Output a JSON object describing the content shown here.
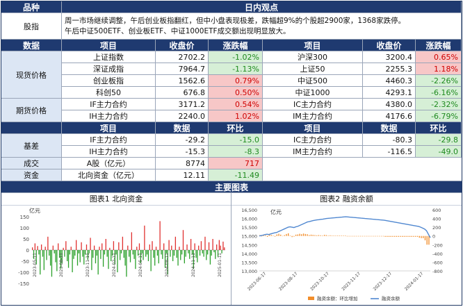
{
  "header": {
    "variety": "品种",
    "view": "日内观点"
  },
  "intraday": {
    "label": "股指",
    "lines": [
      "周一市场继续调整，午后创业板指翻红，但中小盘表现极差，跌幅超9%的个股超2900家，1368家跌停。",
      "午后中证500ETF、创业板ETF、中证1000ETF成交额出现明显放大。"
    ]
  },
  "section_headers": {
    "data": "数据",
    "item": "项目",
    "close": "收盘价",
    "change": "涨跌幅",
    "item2": "项目",
    "close2": "收盘价",
    "change2": "涨跌幅",
    "data2": "数据",
    "hb": "环比",
    "item3": "项目",
    "data3": "数据",
    "hb2": "环比",
    "charts": "主要图表"
  },
  "spot": {
    "label": "现货价格",
    "rows": [
      {
        "left": {
          "name": "上证指数",
          "close": "2702.2",
          "chg": "-1.02%",
          "dir": "down"
        },
        "right": {
          "name": "沪深300",
          "close": "3200.4",
          "chg": "0.65%",
          "dir": "up"
        }
      },
      {
        "left": {
          "name": "深证成指",
          "close": "7964.7",
          "chg": "-1.13%",
          "dir": "down"
        },
        "right": {
          "name": "上证50",
          "close": "2255.3",
          "chg": "1.18%",
          "dir": "up"
        }
      },
      {
        "left": {
          "name": "创业板指",
          "close": "1562.6",
          "chg": "0.79%",
          "dir": "up"
        },
        "right": {
          "name": "中证500",
          "close": "4460.3",
          "chg": "-2.26%",
          "dir": "down"
        }
      },
      {
        "left": {
          "name": "科创50",
          "close": "676.8",
          "chg": "0.50%",
          "dir": "up"
        },
        "right": {
          "name": "中证1000",
          "close": "4293.1",
          "chg": "-6.16%",
          "dir": "down"
        }
      }
    ]
  },
  "futures": {
    "label": "期货价格",
    "rows": [
      {
        "left": {
          "name": "IF主力合约",
          "close": "3171.2",
          "chg": "0.54%",
          "dir": "up"
        },
        "right": {
          "name": "IC主力合约",
          "close": "4380.0",
          "chg": "-2.32%",
          "dir": "down"
        }
      },
      {
        "left": {
          "name": "IH主力合约",
          "close": "2240.0",
          "chg": "1.02%",
          "dir": "up"
        },
        "right": {
          "name": "IM主力合约",
          "close": "4176.6",
          "chg": "-6.79%",
          "dir": "down"
        }
      }
    ]
  },
  "basis": {
    "label": "基差",
    "rows": [
      {
        "left": {
          "name": "IF主力合约",
          "val": "-29.2",
          "hb": "-15.0",
          "dir": "down"
        },
        "right": {
          "name": "IC主力合约",
          "val": "-80.3",
          "hb": "-29.8",
          "dir": "down"
        }
      },
      {
        "left": {
          "name": "IH主力合约",
          "val": "-15.3",
          "hb": "-8.3",
          "dir": "down"
        },
        "right": {
          "name": "IM主力合约",
          "val": "-116.5",
          "hb": "-49.0",
          "dir": "down"
        }
      }
    ]
  },
  "turnover": {
    "label": "成交",
    "name": "A股（亿元）",
    "val": "8774",
    "hb": "717",
    "dir": "up"
  },
  "fund": {
    "label": "资金",
    "name": "北向资金（亿元）",
    "val": "12.11",
    "hb": "-11.49",
    "dir": "down"
  },
  "chart_data": [
    {
      "type": "bar",
      "title": "图表1  北向资金",
      "ylabel": "亿元",
      "ylim": [
        -150,
        150
      ],
      "yticks": [
        150,
        100,
        50,
        0,
        -50,
        -100,
        -150
      ],
      "xticks": [
        "2023-05-11",
        "2023-08-11",
        "2023-11-11",
        "2024-02-11",
        "2024-05-11",
        "2024-08-11",
        "2024-11-11",
        "2025-01-11"
      ],
      "colors": {
        "pos": "#e0302f",
        "neg": "#2aa02a"
      },
      "values": [
        12,
        -40,
        30,
        -65,
        18,
        -20,
        -110,
        25,
        -30,
        -90,
        15,
        -45,
        60,
        -25,
        -70,
        -120,
        20,
        -15,
        -55,
        -95,
        30,
        -35,
        -85,
        -60,
        10,
        -30,
        40,
        -50,
        -80,
        -20,
        15,
        -100,
        -40,
        -25,
        45,
        -70,
        -15,
        -55,
        35,
        -30,
        -65,
        -20,
        25,
        -45,
        -15,
        55,
        -90,
        -35,
        20,
        -60,
        -25,
        -110,
        15,
        -40,
        30,
        -75,
        -20,
        50,
        -30,
        -85,
        10,
        -50,
        -25,
        40,
        -65,
        -20,
        -100,
        35,
        -45,
        -15,
        60,
        -35,
        -70,
        -120,
        20,
        -30,
        -55,
        80,
        -20,
        -40,
        -85,
        15,
        -25,
        30,
        -60,
        -15,
        -45,
        110,
        -30,
        -20,
        -50,
        25,
        -95,
        40,
        -35,
        -70,
        15,
        -25,
        -60,
        130,
        -20,
        -40,
        30,
        -80,
        -15,
        -110,
        45,
        -30,
        20,
        -50,
        -25,
        60,
        -35,
        -70,
        15,
        -45,
        -20,
        90,
        -60,
        -30,
        25,
        -15,
        -40,
        50,
        -20,
        -85,
        30,
        -35,
        -55,
        20,
        -25,
        40,
        -15,
        -30,
        60,
        -45,
        -20,
        35,
        -65,
        -25,
        50,
        -10,
        -40,
        25,
        -30,
        45,
        20,
        -15,
        38,
        12
      ]
    },
    {
      "type": "line",
      "title": "图表2  融资余额",
      "ylabel": "亿元",
      "ylim_left": [
        13000,
        16500
      ],
      "yticks_left": [
        16500,
        16000,
        15500,
        15000,
        14500,
        14000,
        13500,
        13000
      ],
      "ylim_right": [
        -800,
        600
      ],
      "yticks_right": [
        600,
        400,
        200,
        0,
        -200,
        -400,
        -600,
        -800
      ],
      "xticks": [
        "2023-06-17",
        "2023-08-17",
        "2023-10-17",
        "2023-11-17",
        "2023-12-17",
        "2024-01-17"
      ],
      "colors": {
        "line": "#4f87d0",
        "bar": "#f28e2b"
      },
      "legend": [
        "融资余额：环比增加",
        "融资余额"
      ],
      "legend_position": "bottom",
      "line_values": [
        15000,
        15020,
        15050,
        15080,
        15100,
        15080,
        15120,
        15150,
        15180,
        15200,
        15250,
        15300,
        15350,
        15400,
        15450,
        15500,
        15520,
        15500,
        15480,
        15520,
        15550,
        15600,
        15650,
        15700,
        15750,
        15800,
        15820,
        15850,
        15880,
        15900,
        15920,
        15930,
        15950,
        15960,
        15980,
        16000,
        16010,
        16020,
        16030,
        16040,
        16050,
        16060,
        16070,
        16080,
        16090,
        16100,
        16090,
        16080,
        16070,
        16060,
        16050,
        16040,
        16030,
        16020,
        16010,
        16000,
        15990,
        15980,
        15970,
        15960,
        15950,
        15940,
        15930,
        15920,
        15910,
        15900,
        15880,
        15860,
        15840,
        15820,
        15800,
        15780,
        15760,
        15740,
        15720,
        15700,
        15680,
        15660,
        15640,
        15620,
        15600,
        15580,
        15560,
        15540,
        15500,
        15450,
        15400,
        15300,
        15100,
        14900
      ],
      "bar_values": [
        20,
        -10,
        30,
        15,
        -20,
        40,
        25,
        10,
        -15,
        35,
        50,
        30,
        -5,
        20,
        45,
        60,
        10,
        -25,
        -15,
        30,
        35,
        50,
        40,
        55,
        45,
        40,
        20,
        30,
        25,
        20,
        15,
        20,
        15,
        10,
        25,
        20,
        10,
        15,
        10,
        10,
        10,
        10,
        10,
        10,
        10,
        10,
        -10,
        -10,
        -10,
        -10,
        -10,
        -10,
        -10,
        -10,
        -10,
        -10,
        -10,
        -10,
        -10,
        -10,
        -10,
        -10,
        -10,
        -10,
        -10,
        -10,
        -20,
        -20,
        -20,
        -20,
        -20,
        -20,
        -20,
        -20,
        -20,
        -20,
        -20,
        -20,
        -20,
        -20,
        -20,
        -20,
        -20,
        -20,
        -40,
        -50,
        -50,
        -100,
        -200,
        -200
      ]
    }
  ]
}
